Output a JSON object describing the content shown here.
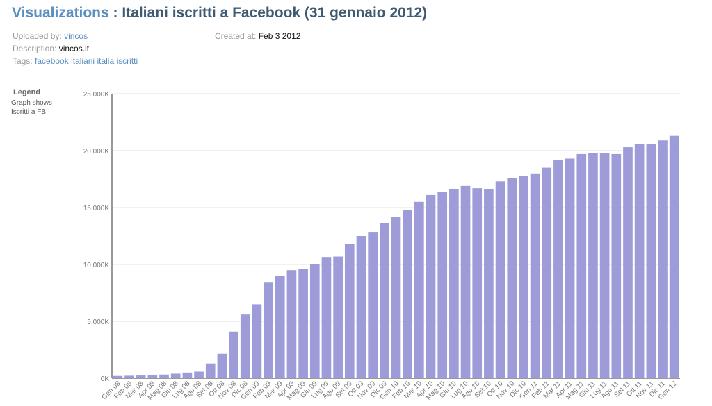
{
  "header": {
    "visualizations_link": "Visualizations",
    "separator": " : ",
    "title": "Italiani iscritti a Facebook (31 gennaio 2012)"
  },
  "meta": {
    "uploaded_by_label": "Uploaded by:",
    "uploaded_by_value": "vincos",
    "created_at_label": "Created at:",
    "created_at_value": "Feb 3 2012",
    "description_label": "Description:",
    "description_value": "vincos.it",
    "tags_label": "Tags:",
    "tags": [
      "facebook",
      "italiani",
      "italia",
      "iscritti"
    ]
  },
  "legend": {
    "heading": "Legend",
    "line1": "Graph shows",
    "line2": "Iscritti a FB"
  },
  "chart_data": {
    "type": "bar",
    "bar_color": "#9d9cd9",
    "ylim": [
      0,
      25000
    ],
    "y_ticks": [
      {
        "value": 0,
        "label": "0K"
      },
      {
        "value": 5000,
        "label": "5.000K"
      },
      {
        "value": 10000,
        "label": "10.000K"
      },
      {
        "value": 15000,
        "label": "15.000K"
      },
      {
        "value": 20000,
        "label": "20.000K"
      },
      {
        "value": 25000,
        "label": "25.000K"
      }
    ],
    "categories": [
      "Gen 08",
      "Feb 08",
      "Mar 08",
      "Apr 08",
      "Mag 08",
      "Giu 08",
      "Lug 08",
      "Ago 08",
      "Set 08",
      "Ott 08",
      "Nov 08",
      "Dic 08",
      "Gen 09",
      "Feb 09",
      "Mar 09",
      "Apr 09",
      "Mag 09",
      "Giu 09",
      "Lug 09",
      "Ago 09",
      "Set 09",
      "Ott 09",
      "Nov 09",
      "Dic 09",
      "Gen 10",
      "Feb 10",
      "Mar 10",
      "Apr 10",
      "Mag 10",
      "Giu 10",
      "Lug 10",
      "Ago 10",
      "Set 10",
      "Ott 10",
      "Nov 10",
      "Dic 10",
      "Gen 11",
      "Feb 11",
      "Mar 11",
      "Apr 11",
      "Mag 11",
      "Giu 11",
      "Lug 11",
      "Ago 11",
      "Set 11",
      "Ott 11",
      "Nov 11",
      "Dic 11",
      "Gen 12"
    ],
    "values": [
      200,
      220,
      240,
      270,
      320,
      400,
      500,
      580,
      1300,
      2150,
      4100,
      5600,
      6500,
      8400,
      9000,
      9500,
      9600,
      10000,
      10600,
      10700,
      11800,
      12500,
      12800,
      13600,
      14200,
      14800,
      15500,
      16100,
      16400,
      16600,
      16900,
      16700,
      16600,
      17300,
      17600,
      17800,
      18000,
      18500,
      19200,
      19300,
      19700,
      19800,
      19800,
      19700,
      20300,
      20600,
      20600,
      20900,
      21300
    ]
  }
}
